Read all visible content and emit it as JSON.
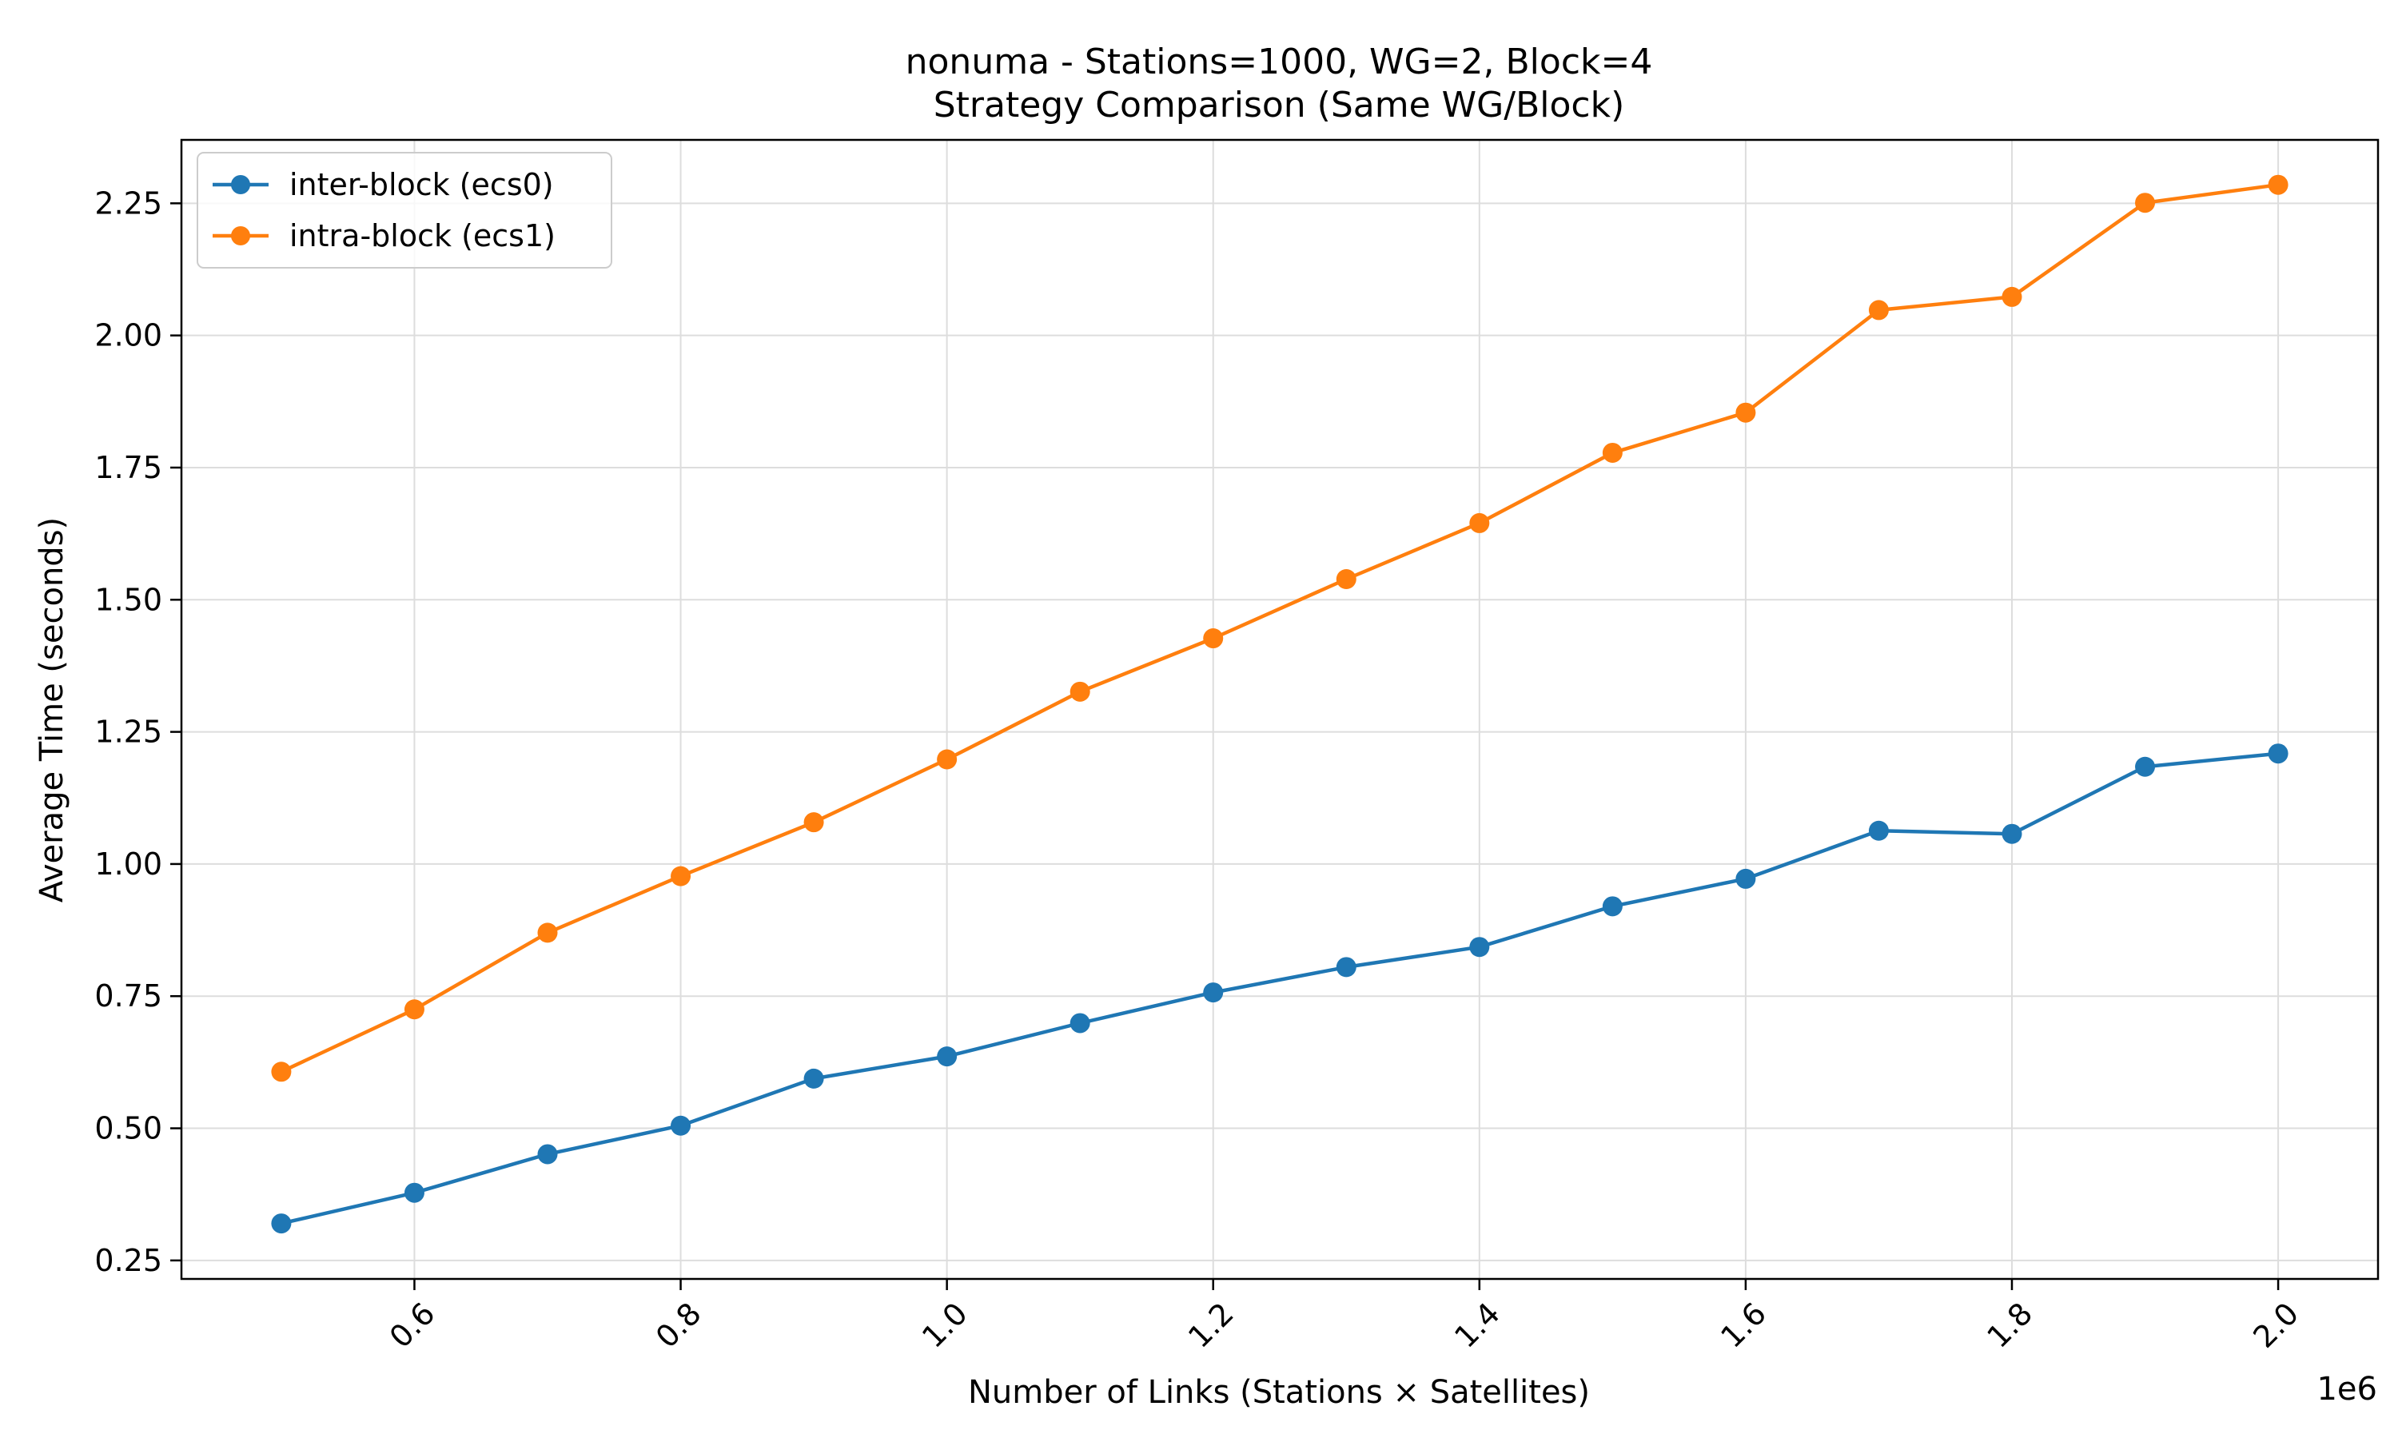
{
  "chart_data": {
    "type": "line",
    "title": "nonuma - Stations=1000, WG=2, Block=4",
    "subtitle": "Strategy Comparison (Same WG/Block)",
    "xlabel": "Number of Links (Stations × Satellites)",
    "ylabel": "Average Time (seconds)",
    "x_offset_label": "1e6",
    "x": [
      0.5,
      0.6,
      0.7,
      0.8,
      0.9,
      1.0,
      1.1,
      1.2,
      1.3,
      1.4,
      1.5,
      1.6,
      1.7,
      1.8,
      1.9,
      2.0
    ],
    "xlim": [
      0.425,
      2.075
    ],
    "ylim": [
      0.215,
      2.37
    ],
    "x_ticks": [
      0.6,
      0.8,
      1.0,
      1.2,
      1.4,
      1.6,
      1.8,
      2.0
    ],
    "x_tick_labels": [
      "0.6",
      "0.8",
      "1.0",
      "1.2",
      "1.4",
      "1.6",
      "1.8",
      "2.0"
    ],
    "y_ticks": [
      0.25,
      0.5,
      0.75,
      1.0,
      1.25,
      1.5,
      1.75,
      2.0,
      2.25
    ],
    "y_tick_labels": [
      "0.25",
      "0.50",
      "0.75",
      "1.00",
      "1.25",
      "1.50",
      "1.75",
      "2.00",
      "2.25"
    ],
    "grid": true,
    "legend_position": "top-left",
    "series": [
      {
        "name": "inter-block (ecs0)",
        "color": "#1f77b4",
        "marker": "circle",
        "values": [
          0.32,
          0.378,
          0.451,
          0.505,
          0.594,
          0.636,
          0.699,
          0.757,
          0.805,
          0.843,
          0.92,
          0.972,
          1.063,
          1.057,
          1.184,
          1.209
        ]
      },
      {
        "name": "intra-block (ecs1)",
        "color": "#ff7f0e",
        "marker": "circle",
        "values": [
          0.607,
          0.725,
          0.87,
          0.977,
          1.079,
          1.198,
          1.326,
          1.427,
          1.539,
          1.645,
          1.778,
          1.854,
          2.048,
          2.073,
          2.251,
          2.285
        ]
      }
    ]
  }
}
